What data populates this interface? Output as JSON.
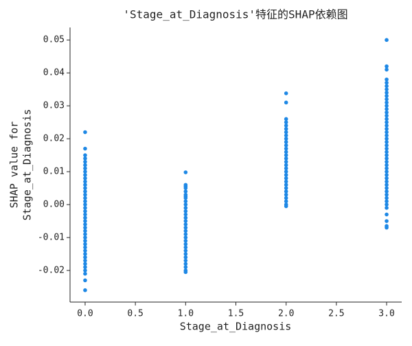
{
  "chart_data": {
    "type": "scatter",
    "title": "'Stage_at_Diagnosis'特征的SHAP依赖图",
    "xlabel": "Stage_at_Diagnosis",
    "ylabel": [
      "SHAP value for",
      "Stage_at_Diagnosis"
    ],
    "color": "#1e88e5",
    "xlim": [
      -0.15,
      3.15
    ],
    "ylim": [
      -0.0296,
      0.0538
    ],
    "xticks": [
      {
        "value": 0,
        "label": "0.0"
      },
      0.5,
      {
        "value": 1,
        "label": "1.0"
      },
      1.5,
      {
        "value": 2,
        "label": "2.0"
      },
      2.5,
      {
        "value": 3,
        "label": "3.0"
      }
    ],
    "yticks": [
      -0.02,
      -0.01,
      {
        "value": 0,
        "label": "0.00"
      },
      0.01,
      0.02,
      0.03,
      0.04,
      0.05
    ],
    "x": [
      0,
      0,
      0,
      0,
      0,
      0,
      0,
      0,
      0,
      0,
      0,
      0,
      0,
      0,
      0,
      0,
      0,
      0,
      0,
      0,
      0,
      0,
      0,
      0,
      0,
      0,
      0,
      0,
      0,
      0,
      0,
      0,
      0,
      0,
      0,
      0,
      0,
      0,
      0,
      0,
      0,
      1,
      1,
      1,
      1,
      1,
      1,
      1,
      1,
      1,
      1,
      1,
      1,
      1,
      1,
      1,
      1,
      1,
      1,
      1,
      1,
      1,
      1,
      1,
      1,
      1,
      1,
      1,
      1,
      1,
      1,
      1,
      2,
      2,
      2,
      2,
      2,
      2,
      2,
      2,
      2,
      2,
      2,
      2,
      2,
      2,
      2,
      2,
      2,
      2,
      2,
      2,
      2,
      2,
      2,
      2,
      2,
      2,
      2,
      2,
      2,
      2,
      3,
      3,
      3,
      3,
      3,
      3,
      3,
      3,
      3,
      3,
      3,
      3,
      3,
      3,
      3,
      3,
      3,
      3,
      3,
      3,
      3,
      3,
      3,
      3,
      3,
      3,
      3,
      3,
      3,
      3,
      3,
      3,
      3,
      3,
      3,
      3,
      3,
      3,
      3,
      3,
      3,
      3,
      3,
      3,
      3,
      3,
      3
    ],
    "values": [
      0.022,
      0.017,
      0.015,
      0.014,
      0.013,
      0.012,
      0.011,
      0.01,
      0.009,
      0.008,
      0.007,
      0.006,
      0.005,
      0.004,
      0.003,
      0.002,
      0.001,
      0,
      -0.001,
      -0.002,
      -0.003,
      -0.004,
      -0.005,
      -0.006,
      -0.007,
      -0.008,
      -0.009,
      -0.01,
      -0.011,
      -0.012,
      -0.013,
      -0.014,
      -0.015,
      -0.016,
      -0.017,
      -0.018,
      -0.019,
      -0.02,
      -0.021,
      -0.023,
      -0.026,
      0.0098,
      0.006,
      0.0055,
      0.005,
      0.004,
      0.003,
      0.0025,
      0.002,
      0.001,
      0,
      -0.001,
      -0.002,
      -0.003,
      -0.004,
      -0.005,
      -0.006,
      -0.007,
      -0.008,
      -0.009,
      -0.01,
      -0.011,
      -0.012,
      -0.013,
      -0.014,
      -0.015,
      -0.016,
      -0.017,
      -0.018,
      -0.019,
      -0.02,
      -0.0205,
      0.0338,
      0.031,
      0.026,
      0.025,
      0.024,
      0.023,
      0.022,
      0.021,
      0.02,
      0.019,
      0.018,
      0.017,
      0.016,
      0.015,
      0.014,
      0.013,
      0.012,
      0.011,
      0.01,
      0.009,
      0.008,
      0.007,
      0.006,
      0.005,
      0.004,
      0.003,
      0.002,
      0.001,
      0,
      -0.0005,
      0.05,
      0.042,
      0.041,
      0.038,
      0.037,
      0.036,
      0.035,
      0.034,
      0.033,
      0.032,
      0.031,
      0.03,
      0.029,
      0.028,
      0.027,
      0.026,
      0.025,
      0.024,
      0.023,
      0.022,
      0.021,
      0.02,
      0.019,
      0.018,
      0.017,
      0.016,
      0.015,
      0.014,
      0.013,
      0.012,
      0.011,
      0.01,
      0.009,
      0.008,
      0.007,
      0.006,
      0.005,
      0.004,
      0.003,
      0.002,
      0.001,
      0,
      -0.001,
      -0.003,
      -0.005,
      -0.0065,
      -0.007
    ]
  }
}
